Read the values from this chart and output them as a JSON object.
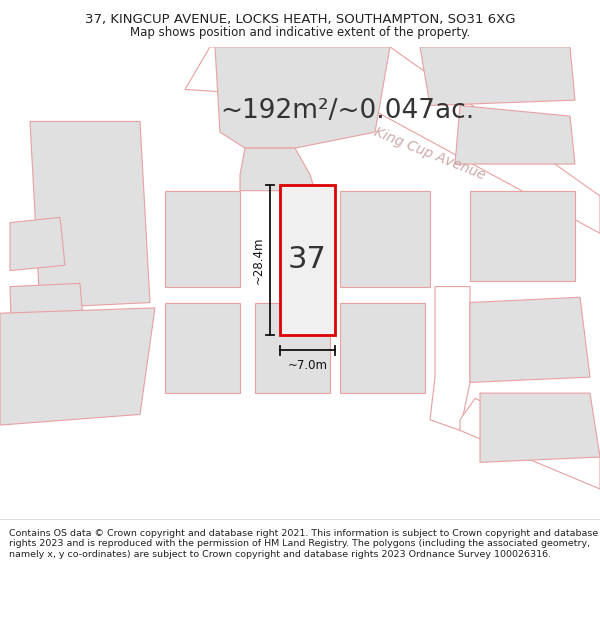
{
  "title_line1": "37, KINGCUP AVENUE, LOCKS HEATH, SOUTHAMPTON, SO31 6XG",
  "title_line2": "Map shows position and indicative extent of the property.",
  "area_text": "~192m²/~0.047ac.",
  "street_name": "King Cup Avenue",
  "plot_number": "37",
  "dim_height": "~28.4m",
  "dim_width": "~7.0m",
  "footer_text": "Contains OS data © Crown copyright and database right 2021. This information is subject to Crown copyright and database rights 2023 and is reproduced with the permission of HM Land Registry. The polygons (including the associated geometry, namely x, y co-ordinates) are subject to Crown copyright and database rights 2023 Ordnance Survey 100026316.",
  "bg_color": "#ffffff",
  "map_bg": "#ffffff",
  "plot_fill": "#f0f0f0",
  "plot_border": "#dd0000",
  "neighbor_fill": "#e0e0e0",
  "neighbor_border": "#e8a0a0",
  "road_color": "#ffffff",
  "road_border": "#e8a0a0",
  "dim_line_color": "#111111",
  "street_text_color": "#c8a0a0",
  "title_color": "#222222",
  "footer_color": "#222222",
  "title_fontsize": 9.5,
  "subtitle_fontsize": 8.5,
  "area_fontsize": 19,
  "plot_num_fontsize": 22,
  "dim_fontsize": 8.5,
  "street_fontsize": 10,
  "footer_fontsize": 6.8
}
